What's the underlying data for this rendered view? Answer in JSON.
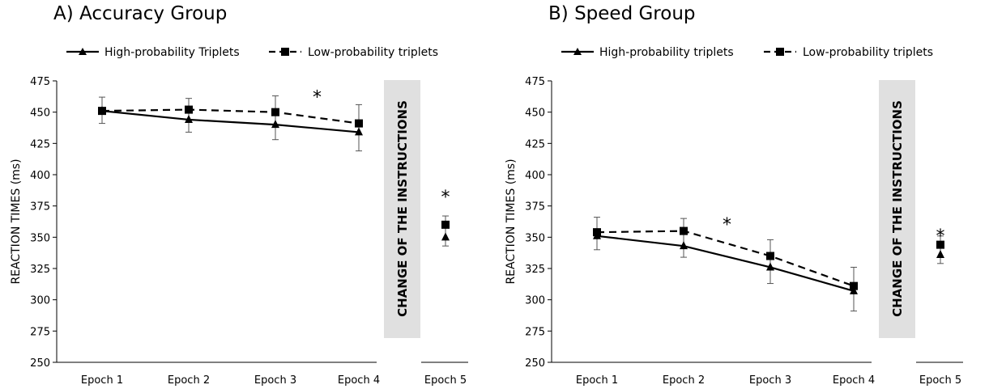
{
  "chart_data": [
    {
      "type": "line",
      "title": "A) Accuracy Group",
      "ylabel": "REACTION TIMES (ms)",
      "ylim": [
        250,
        475
      ],
      "yticks": [
        250,
        275,
        300,
        325,
        350,
        375,
        400,
        425,
        450,
        475
      ],
      "categories": [
        "Epoch  1",
        "Epoch 2",
        "Epoch 3",
        "Epoch 4"
      ],
      "post_category": "Epoch 5",
      "instruction_label": "CHANGE OF THE INSTRUCTIONS",
      "series": [
        {
          "name": "High-probability Triplets",
          "values": [
            451,
            444,
            440,
            434
          ],
          "epoch5": 350,
          "epoch5_err": 7,
          "marker": "triangle",
          "dash": false
        },
        {
          "name": "Low-probability triplets",
          "values": [
            451,
            452,
            450,
            441
          ],
          "epoch5": 360,
          "epoch5_err": 7,
          "marker": "square",
          "dash": true
        }
      ],
      "error_bars": [
        [
          441,
          462
        ],
        [
          434,
          461
        ],
        [
          428,
          463
        ],
        [
          419,
          456
        ]
      ],
      "significance": [
        {
          "between": [
            2,
            3
          ],
          "y": 465,
          "label": "*"
        },
        {
          "post": true,
          "y": 385,
          "label": "*"
        }
      ]
    },
    {
      "type": "line",
      "title": "B) Speed Group",
      "ylabel": "REACTION TIMES (ms)",
      "ylim": [
        250,
        475
      ],
      "yticks": [
        250,
        275,
        300,
        325,
        350,
        375,
        400,
        425,
        450,
        475
      ],
      "categories": [
        "Epoch  1",
        "Epoch 2",
        "Epoch 3",
        "Epoch 4"
      ],
      "post_category": "Epoch 5",
      "instruction_label": "CHANGE OF THE INSTRUCTIONS",
      "series": [
        {
          "name": "High-probability triplets",
          "values": [
            351,
            343,
            326,
            307
          ],
          "epoch5": 336,
          "epoch5_err": 7,
          "marker": "triangle",
          "dash": false
        },
        {
          "name": "Low-probability triplets",
          "values": [
            354,
            355,
            335,
            311
          ],
          "epoch5": 344,
          "epoch5_err": 7,
          "marker": "square",
          "dash": true
        }
      ],
      "error_bars": [
        [
          340,
          366
        ],
        [
          334,
          365
        ],
        [
          313,
          348
        ],
        [
          291,
          326
        ]
      ],
      "significance": [
        {
          "between": [
            1,
            2
          ],
          "y": 363,
          "label": "*"
        },
        {
          "post": true,
          "y": 354,
          "label": "*"
        }
      ]
    }
  ]
}
